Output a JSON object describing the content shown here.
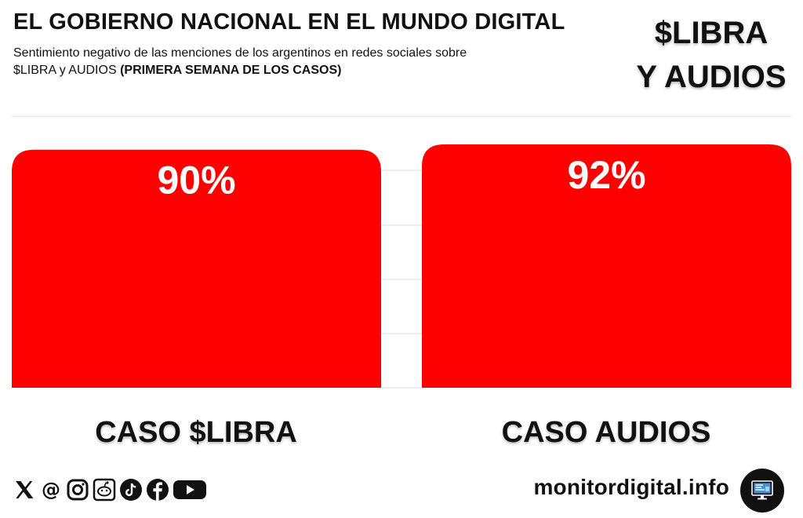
{
  "header": {
    "title": "EL GOBIERNO NACIONAL EN EL MUNDO DIGITAL",
    "subtitle_line1": "Sentimiento negativo de las menciones de los argentinos en redes sociales sobre",
    "subtitle_line2_prefix": "$LIBRA y AUDIOS ",
    "subtitle_line2_bold": "(PRIMERA SEMANA DE LOS CASOS)",
    "topic_line1": "$LIBRA",
    "topic_line2": "Y AUDIOS"
  },
  "chart_data": {
    "type": "bar",
    "categories": [
      "CASO $LIBRA",
      "CASO AUDIOS"
    ],
    "values": [
      90,
      92
    ],
    "value_labels": [
      "90%",
      "92%"
    ],
    "unit": "%",
    "ylim": [
      0,
      100
    ],
    "grid": true,
    "bar_color": "#ff0000"
  },
  "footer": {
    "social_icons": [
      "x-icon",
      "threads-icon",
      "instagram-icon",
      "reddit-icon",
      "tiktok-icon",
      "facebook-icon",
      "youtube-icon"
    ],
    "site": "monitordigital.info",
    "logo_icon": "monitor-icon"
  }
}
